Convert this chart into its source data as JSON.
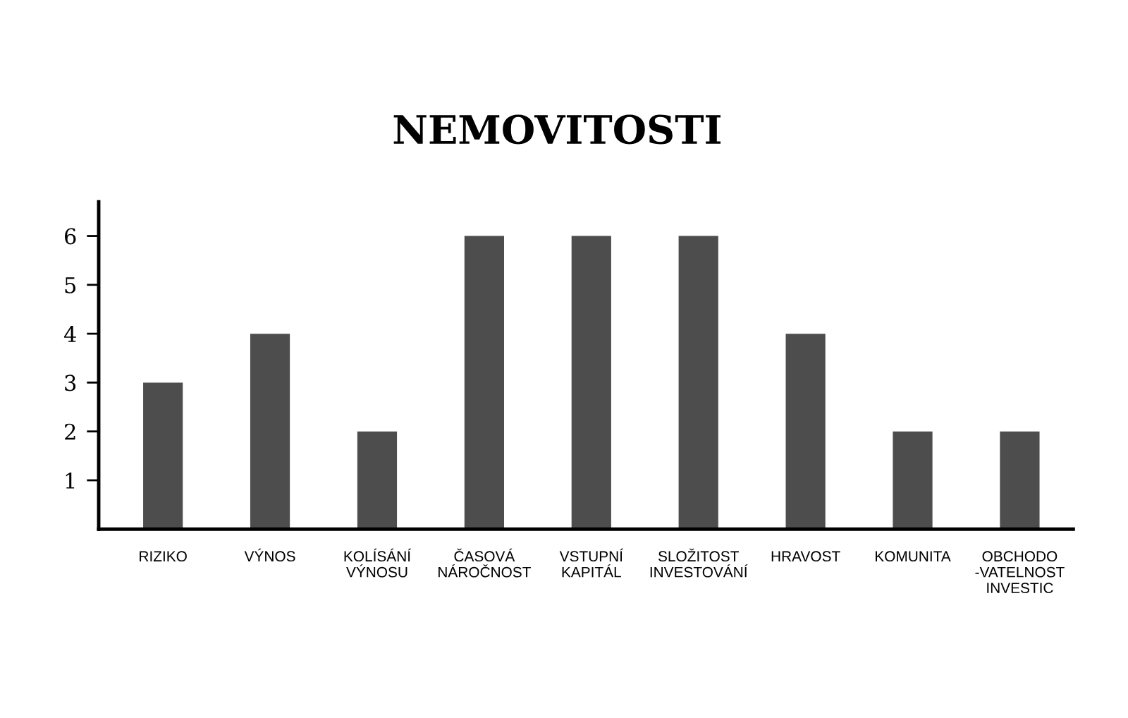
{
  "chart_data": {
    "type": "bar",
    "title": "NEMOVITOSTI",
    "categories": [
      "RIZIKO",
      "VÝNOS",
      "KOLÍSÁNÍ\nVÝNOSU",
      "ČASOVÁ\nNÁROČNOST",
      "VSTUPNÍ\nKAPITÁL",
      "SLOŽITOST\nINVESTOVÁNÍ",
      "HRAVOST",
      "KOMUNITA",
      "OBCHODO\n-VATELNOST\nINVESTIC"
    ],
    "values": [
      3,
      4,
      2,
      6,
      6,
      6,
      4,
      2,
      2
    ],
    "color": "#4d4d4d",
    "ylim": [
      0,
      6.7
    ],
    "yticks": [
      1,
      2,
      3,
      4,
      5,
      6
    ],
    "grid": false,
    "legend": false
  }
}
